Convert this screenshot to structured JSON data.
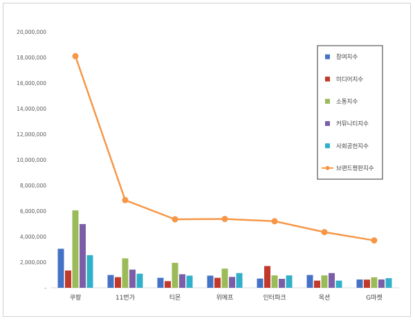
{
  "chart_data": {
    "type": "bar",
    "title": "",
    "xlabel": "",
    "ylabel": "",
    "ylim": [
      0,
      20000000
    ],
    "y_ticks": [
      "-",
      "2,000,000",
      "4,000,000",
      "6,000,000",
      "8,000,000",
      "10,000,000",
      "12,000,000",
      "14,000,000",
      "16,000,000",
      "18,000,000",
      "20,000,000"
    ],
    "grid": false,
    "legend_position": "right",
    "categories": [
      "쿠팡",
      "11번가",
      "티몬",
      "위메프",
      "인터파크",
      "옥션",
      "G마켓"
    ],
    "series": [
      {
        "name": "참여지수",
        "kind": "bar",
        "color": "#4472c4",
        "values": [
          3050000,
          1000000,
          780000,
          950000,
          720000,
          1000000,
          650000
        ]
      },
      {
        "name": "미디어지수",
        "kind": "bar",
        "color": "#c0392b",
        "values": [
          1350000,
          830000,
          520000,
          780000,
          1700000,
          560000,
          640000
        ]
      },
      {
        "name": "소통지수",
        "kind": "bar",
        "color": "#9bbb59",
        "values": [
          6050000,
          2300000,
          1950000,
          1500000,
          970000,
          970000,
          820000
        ]
      },
      {
        "name": "커뮤니티지수",
        "kind": "bar",
        "color": "#7b5ea7",
        "values": [
          4980000,
          1420000,
          1060000,
          850000,
          700000,
          1150000,
          650000
        ]
      },
      {
        "name": "사회공헌지수",
        "kind": "bar",
        "color": "#31b0c9",
        "values": [
          2550000,
          1100000,
          950000,
          1150000,
          970000,
          560000,
          750000
        ]
      },
      {
        "name": "브랜드평판지수",
        "kind": "line",
        "color": "#f79646",
        "values": [
          18100000,
          6850000,
          5350000,
          5380000,
          5200000,
          4350000,
          3700000
        ]
      }
    ]
  }
}
